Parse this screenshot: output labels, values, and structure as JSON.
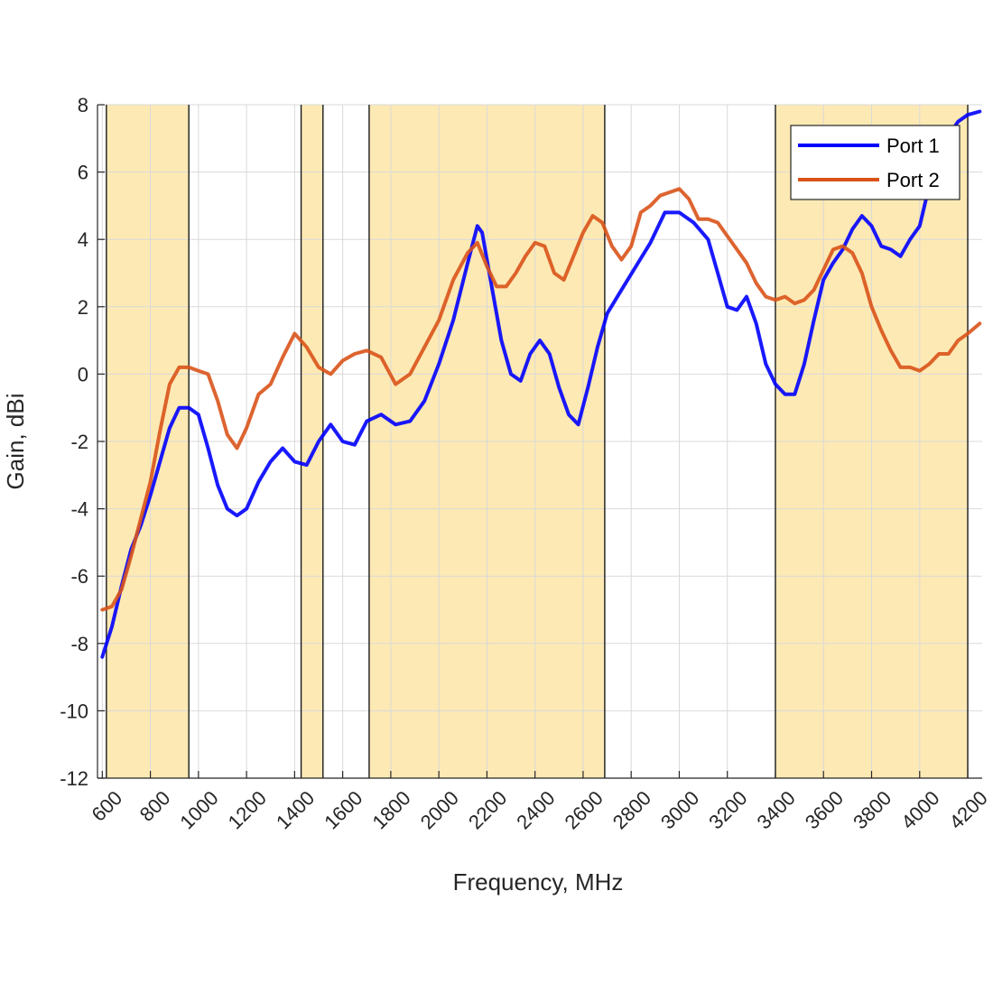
{
  "chart_data": {
    "type": "line",
    "title": "",
    "xlabel": "Frequency, MHz",
    "ylabel": "Gain, dBi",
    "xlim": [
      580,
      4260
    ],
    "ylim": [
      -12,
      8
    ],
    "xticks": [
      600,
      800,
      1000,
      1200,
      1400,
      1600,
      1800,
      2000,
      2200,
      2400,
      2600,
      2800,
      3000,
      3200,
      3400,
      3600,
      3800,
      4000,
      4200
    ],
    "yticks": [
      -12,
      -10,
      -8,
      -6,
      -4,
      -2,
      0,
      2,
      4,
      6,
      8
    ],
    "xtick_labels": [
      "600",
      "800",
      "1000",
      "1200",
      "1400",
      "1600",
      "1800",
      "2000",
      "2200",
      "2400",
      "2600",
      "2800",
      "3000",
      "3200",
      "3400",
      "3600",
      "3800",
      "4000",
      "4200"
    ],
    "ytick_labels": [
      "-12",
      "-10",
      "-8",
      "-6",
      "-4",
      "-2",
      "0",
      "2",
      "4",
      "6",
      "8"
    ],
    "grid": true,
    "legend_position": "top-right",
    "bands": [
      {
        "from": 617,
        "to": 960
      },
      {
        "from": 1427,
        "to": 1518
      },
      {
        "from": 1710,
        "to": 2690
      },
      {
        "from": 3400,
        "to": 4200
      }
    ],
    "band_color": "#FDE9B4",
    "series": [
      {
        "name": "Port 1",
        "color": "#0000FF",
        "points": [
          [
            600,
            -8.4
          ],
          [
            640,
            -7.5
          ],
          [
            680,
            -6.3
          ],
          [
            720,
            -5.2
          ],
          [
            760,
            -4.5
          ],
          [
            800,
            -3.6
          ],
          [
            840,
            -2.6
          ],
          [
            880,
            -1.6
          ],
          [
            920,
            -1.0
          ],
          [
            960,
            -1.0
          ],
          [
            1000,
            -1.2
          ],
          [
            1040,
            -2.2
          ],
          [
            1080,
            -3.3
          ],
          [
            1120,
            -4.0
          ],
          [
            1160,
            -4.2
          ],
          [
            1200,
            -4.0
          ],
          [
            1250,
            -3.2
          ],
          [
            1300,
            -2.6
          ],
          [
            1350,
            -2.2
          ],
          [
            1400,
            -2.6
          ],
          [
            1450,
            -2.7
          ],
          [
            1500,
            -2.0
          ],
          [
            1550,
            -1.5
          ],
          [
            1600,
            -2.0
          ],
          [
            1650,
            -2.1
          ],
          [
            1700,
            -1.4
          ],
          [
            1760,
            -1.2
          ],
          [
            1820,
            -1.5
          ],
          [
            1880,
            -1.4
          ],
          [
            1940,
            -0.8
          ],
          [
            2000,
            0.3
          ],
          [
            2060,
            1.6
          ],
          [
            2120,
            3.3
          ],
          [
            2160,
            4.4
          ],
          [
            2180,
            4.2
          ],
          [
            2220,
            2.6
          ],
          [
            2260,
            1.0
          ],
          [
            2300,
            0.0
          ],
          [
            2340,
            -0.2
          ],
          [
            2380,
            0.6
          ],
          [
            2420,
            1.0
          ],
          [
            2460,
            0.6
          ],
          [
            2500,
            -0.4
          ],
          [
            2540,
            -1.2
          ],
          [
            2580,
            -1.5
          ],
          [
            2620,
            -0.4
          ],
          [
            2660,
            0.8
          ],
          [
            2700,
            1.8
          ],
          [
            2760,
            2.5
          ],
          [
            2820,
            3.2
          ],
          [
            2880,
            3.9
          ],
          [
            2940,
            4.8
          ],
          [
            3000,
            4.8
          ],
          [
            3060,
            4.5
          ],
          [
            3120,
            4.0
          ],
          [
            3160,
            3.0
          ],
          [
            3200,
            2.0
          ],
          [
            3240,
            1.9
          ],
          [
            3280,
            2.3
          ],
          [
            3320,
            1.5
          ],
          [
            3360,
            0.3
          ],
          [
            3400,
            -0.3
          ],
          [
            3440,
            -0.6
          ],
          [
            3480,
            -0.6
          ],
          [
            3520,
            0.3
          ],
          [
            3560,
            1.6
          ],
          [
            3600,
            2.8
          ],
          [
            3640,
            3.3
          ],
          [
            3680,
            3.7
          ],
          [
            3720,
            4.3
          ],
          [
            3760,
            4.7
          ],
          [
            3800,
            4.4
          ],
          [
            3840,
            3.8
          ],
          [
            3880,
            3.7
          ],
          [
            3920,
            3.5
          ],
          [
            3960,
            4.0
          ],
          [
            4000,
            4.4
          ],
          [
            4040,
            5.6
          ],
          [
            4080,
            6.6
          ],
          [
            4120,
            7.1
          ],
          [
            4160,
            7.5
          ],
          [
            4200,
            7.7
          ],
          [
            4250,
            7.8
          ]
        ]
      },
      {
        "name": "Port 2",
        "color": "#D95319",
        "points": [
          [
            600,
            -7.0
          ],
          [
            640,
            -6.9
          ],
          [
            680,
            -6.4
          ],
          [
            720,
            -5.4
          ],
          [
            760,
            -4.3
          ],
          [
            800,
            -3.2
          ],
          [
            840,
            -1.7
          ],
          [
            880,
            -0.3
          ],
          [
            920,
            0.2
          ],
          [
            960,
            0.2
          ],
          [
            1000,
            0.1
          ],
          [
            1040,
            0.0
          ],
          [
            1080,
            -0.8
          ],
          [
            1120,
            -1.8
          ],
          [
            1160,
            -2.2
          ],
          [
            1200,
            -1.6
          ],
          [
            1250,
            -0.6
          ],
          [
            1300,
            -0.3
          ],
          [
            1350,
            0.5
          ],
          [
            1400,
            1.2
          ],
          [
            1450,
            0.8
          ],
          [
            1500,
            0.2
          ],
          [
            1550,
            0.0
          ],
          [
            1600,
            0.4
          ],
          [
            1650,
            0.6
          ],
          [
            1700,
            0.7
          ],
          [
            1760,
            0.5
          ],
          [
            1820,
            -0.3
          ],
          [
            1880,
            0.0
          ],
          [
            1940,
            0.8
          ],
          [
            2000,
            1.6
          ],
          [
            2060,
            2.8
          ],
          [
            2120,
            3.6
          ],
          [
            2160,
            3.9
          ],
          [
            2200,
            3.2
          ],
          [
            2240,
            2.6
          ],
          [
            2280,
            2.6
          ],
          [
            2320,
            3.0
          ],
          [
            2360,
            3.5
          ],
          [
            2400,
            3.9
          ],
          [
            2440,
            3.8
          ],
          [
            2480,
            3.0
          ],
          [
            2520,
            2.8
          ],
          [
            2560,
            3.5
          ],
          [
            2600,
            4.2
          ],
          [
            2640,
            4.7
          ],
          [
            2680,
            4.5
          ],
          [
            2720,
            3.8
          ],
          [
            2760,
            3.4
          ],
          [
            2800,
            3.8
          ],
          [
            2840,
            4.8
          ],
          [
            2880,
            5.0
          ],
          [
            2920,
            5.3
          ],
          [
            2960,
            5.4
          ],
          [
            3000,
            5.5
          ],
          [
            3040,
            5.2
          ],
          [
            3080,
            4.6
          ],
          [
            3120,
            4.6
          ],
          [
            3160,
            4.5
          ],
          [
            3200,
            4.1
          ],
          [
            3240,
            3.7
          ],
          [
            3280,
            3.3
          ],
          [
            3320,
            2.7
          ],
          [
            3360,
            2.3
          ],
          [
            3400,
            2.2
          ],
          [
            3440,
            2.3
          ],
          [
            3480,
            2.1
          ],
          [
            3520,
            2.2
          ],
          [
            3560,
            2.5
          ],
          [
            3600,
            3.1
          ],
          [
            3640,
            3.7
          ],
          [
            3680,
            3.8
          ],
          [
            3720,
            3.6
          ],
          [
            3760,
            3.0
          ],
          [
            3800,
            2.0
          ],
          [
            3840,
            1.3
          ],
          [
            3880,
            0.7
          ],
          [
            3920,
            0.2
          ],
          [
            3960,
            0.2
          ],
          [
            4000,
            0.1
          ],
          [
            4040,
            0.3
          ],
          [
            4080,
            0.6
          ],
          [
            4120,
            0.6
          ],
          [
            4160,
            1.0
          ],
          [
            4200,
            1.2
          ],
          [
            4250,
            1.5
          ]
        ]
      }
    ]
  }
}
